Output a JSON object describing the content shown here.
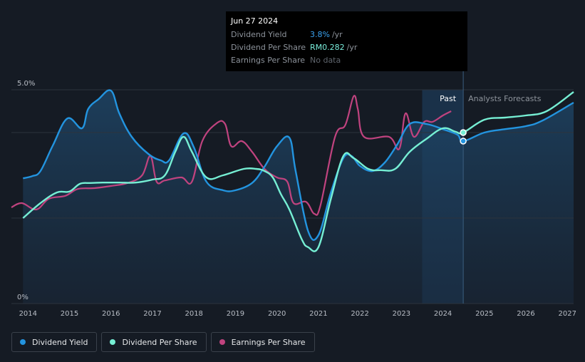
{
  "colors": {
    "dividend_yield": "#2394df",
    "dividend_per_share": "#76efd4",
    "earnings_per_share": "#c0437f",
    "background": "#151b24"
  },
  "tooltip": {
    "date": "Jun 27 2024",
    "rows": [
      {
        "label": "Dividend Yield",
        "value": "3.8%",
        "unit": "/yr"
      },
      {
        "label": "Dividend Per Share",
        "value": "RM0.282",
        "unit": "/yr"
      },
      {
        "label": "Earnings Per Share",
        "value": "No data",
        "unit": ""
      }
    ]
  },
  "legend": [
    {
      "label": "Dividend Yield",
      "color": "#2394df"
    },
    {
      "label": "Dividend Per Share",
      "color": "#76efd4"
    },
    {
      "label": "Earnings Per Share",
      "color": "#c0437f"
    }
  ],
  "chart_data": {
    "type": "line",
    "title": "",
    "xlabel": "",
    "ylabel": "",
    "x_ticks": [
      "2014",
      "2015",
      "2016",
      "2017",
      "2018",
      "2019",
      "2020",
      "2021",
      "2022",
      "2023",
      "2024",
      "2025",
      "2026",
      "2027"
    ],
    "x_range": [
      2013.6,
      2027.15
    ],
    "y_ticks": [
      "5.0%",
      "0%"
    ],
    "ylim": [
      0,
      5.0
    ],
    "regions": [
      {
        "label": "Past",
        "from": 2023.5,
        "to": 2024.49
      },
      {
        "label": "Analysts Forecasts",
        "from": 2024.49,
        "to": 2027.15
      }
    ],
    "hover_x": 2024.49,
    "grid": true,
    "series": [
      {
        "name": "Dividend Yield",
        "unit": "%",
        "color": "#2394df",
        "x": [
          2013.88,
          2014.1,
          2014.3,
          2014.6,
          2014.95,
          2015.3,
          2015.45,
          2015.7,
          2016.0,
          2016.2,
          2016.5,
          2016.9,
          2017.2,
          2017.4,
          2017.75,
          2018.0,
          2018.3,
          2018.7,
          2019.0,
          2019.4,
          2019.7,
          2020.0,
          2020.3,
          2020.45,
          2020.75,
          2021.0,
          2021.3,
          2021.6,
          2021.8,
          2022.0,
          2022.3,
          2022.6,
          2022.9,
          2023.2,
          2023.6,
          2024.0,
          2024.35,
          2024.49,
          2025.0,
          2025.5,
          2026.0,
          2026.4,
          2027.15
        ],
        "values": [
          2.93,
          2.98,
          3.1,
          3.7,
          4.33,
          4.1,
          4.55,
          4.78,
          4.98,
          4.45,
          3.9,
          3.5,
          3.35,
          3.35,
          3.98,
          3.65,
          2.85,
          2.65,
          2.65,
          2.82,
          3.2,
          3.68,
          3.88,
          3.1,
          1.7,
          1.6,
          2.6,
          3.4,
          3.45,
          3.22,
          3.1,
          3.3,
          3.72,
          4.2,
          4.2,
          4.08,
          3.95,
          3.8,
          4.0,
          4.08,
          4.15,
          4.28,
          4.7
        ]
      },
      {
        "name": "Dividend Per Share",
        "unit": "RM",
        "color": "#76efd4",
        "x": [
          2013.88,
          2014.3,
          2014.7,
          2015.0,
          2015.25,
          2015.5,
          2015.8,
          2016.2,
          2016.6,
          2017.0,
          2017.3,
          2017.55,
          2017.75,
          2017.95,
          2018.3,
          2018.7,
          2019.2,
          2019.5,
          2019.7,
          2019.9,
          2020.1,
          2020.3,
          2020.6,
          2020.75,
          2021.0,
          2021.3,
          2021.6,
          2021.85,
          2022.2,
          2022.5,
          2022.85,
          2023.2,
          2023.6,
          2024.0,
          2024.3,
          2024.49,
          2025.0,
          2025.5,
          2026.0,
          2026.5,
          2027.15
        ],
        "values": [
          2.0,
          2.35,
          2.6,
          2.62,
          2.8,
          2.82,
          2.83,
          2.83,
          2.83,
          2.9,
          3.0,
          3.55,
          3.9,
          3.55,
          2.95,
          3.0,
          3.15,
          3.15,
          3.1,
          2.95,
          2.55,
          2.2,
          1.5,
          1.32,
          1.32,
          2.45,
          3.45,
          3.4,
          3.15,
          3.12,
          3.15,
          3.55,
          3.85,
          4.1,
          4.02,
          4.0,
          4.3,
          4.35,
          4.4,
          4.5,
          4.95
        ]
      },
      {
        "name": "Earnings Per Share",
        "unit": "RM",
        "color": "#c0437f",
        "x": [
          2013.6,
          2013.85,
          2014.2,
          2014.5,
          2014.9,
          2015.2,
          2015.6,
          2016.0,
          2016.4,
          2016.75,
          2016.95,
          2017.1,
          2017.3,
          2017.7,
          2017.95,
          2018.2,
          2018.55,
          2018.75,
          2018.9,
          2019.15,
          2019.4,
          2019.7,
          2020.0,
          2020.25,
          2020.4,
          2020.7,
          2020.9,
          2021.05,
          2021.4,
          2021.65,
          2021.85,
          2021.95,
          2022.1,
          2022.7,
          2022.95,
          2023.1,
          2023.3,
          2023.55,
          2023.75,
          2024.0,
          2024.2
        ],
        "values": [
          2.25,
          2.35,
          2.2,
          2.45,
          2.52,
          2.68,
          2.7,
          2.75,
          2.82,
          3.0,
          3.45,
          2.85,
          2.88,
          2.95,
          2.85,
          3.8,
          4.22,
          4.2,
          3.68,
          3.8,
          3.55,
          3.15,
          2.95,
          2.85,
          2.35,
          2.38,
          2.1,
          2.3,
          3.9,
          4.18,
          4.85,
          4.55,
          3.9,
          3.9,
          3.62,
          4.45,
          3.9,
          4.25,
          4.25,
          4.4,
          4.5
        ]
      }
    ]
  }
}
